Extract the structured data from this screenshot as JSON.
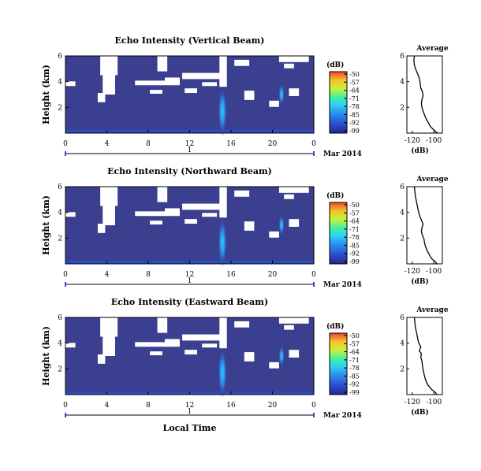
{
  "chart_data": [
    {
      "type": "heatmap",
      "title": "Echo Intensity (Vertical Beam)",
      "ylabel": "Height (km)",
      "y_ticks": [
        "6",
        "4",
        "2"
      ],
      "ylim": [
        0,
        6
      ],
      "x_ticks": [
        "0",
        "4",
        "8",
        "12",
        "16",
        "20",
        "0"
      ],
      "xlim": [
        0,
        24
      ],
      "day_label": "1",
      "month_label": "Mar 2014",
      "colorbar": {
        "unit": "(dB)",
        "ticks": [
          "-50",
          "-57",
          "-64",
          "-71",
          "-78",
          "-85",
          "-92",
          "-99"
        ]
      },
      "profile": {
        "title": "Average",
        "xlabel": "(dB)",
        "x_ticks": [
          "-120",
          "-100"
        ],
        "y_ticks": [
          "6",
          "4",
          "2"
        ],
        "xlim": [
          -125,
          -92
        ],
        "ylim": [
          0,
          6
        ],
        "points": [
          [
            -118,
            6.0
          ],
          [
            -118.5,
            5.7
          ],
          [
            -118,
            5.3
          ],
          [
            -117,
            5.0
          ],
          [
            -115.5,
            4.7
          ],
          [
            -114,
            4.4
          ],
          [
            -113,
            4.1
          ],
          [
            -112.5,
            3.8
          ],
          [
            -112,
            3.5
          ],
          [
            -110.5,
            3.2
          ],
          [
            -110,
            2.9
          ],
          [
            -111,
            2.6
          ],
          [
            -111.5,
            2.3
          ],
          [
            -111,
            2.0
          ],
          [
            -110,
            1.7
          ],
          [
            -108.5,
            1.4
          ],
          [
            -107,
            1.1
          ],
          [
            -105,
            0.8
          ],
          [
            -103,
            0.5
          ],
          [
            -100,
            0.25
          ],
          [
            -98,
            0.1
          ],
          [
            -96,
            0.0
          ]
        ]
      }
    },
    {
      "type": "heatmap",
      "title": "Echo Intensity (Northward Beam)",
      "ylabel": "Height (km)",
      "y_ticks": [
        "6",
        "4",
        "2"
      ],
      "ylim": [
        0,
        6
      ],
      "x_ticks": [
        "0",
        "4",
        "8",
        "12",
        "16",
        "20",
        "0"
      ],
      "xlim": [
        0,
        24
      ],
      "day_label": "1",
      "month_label": "Mar 2014",
      "colorbar": {
        "unit": "(dB)",
        "ticks": [
          "-50",
          "-57",
          "-64",
          "-71",
          "-78",
          "-85",
          "-92",
          "-99"
        ]
      },
      "profile": {
        "title": "Average",
        "xlabel": "(dB)",
        "x_ticks": [
          "-120",
          "-100"
        ],
        "y_ticks": [
          "6",
          "4",
          "2"
        ],
        "xlim": [
          -125,
          -92
        ],
        "ylim": [
          0,
          6
        ],
        "points": [
          [
            -118,
            6.0
          ],
          [
            -117.5,
            5.6
          ],
          [
            -117,
            5.2
          ],
          [
            -116,
            4.8
          ],
          [
            -115,
            4.4
          ],
          [
            -114,
            4.0
          ],
          [
            -113,
            3.7
          ],
          [
            -111.5,
            3.4
          ],
          [
            -110,
            3.1
          ],
          [
            -111,
            2.8
          ],
          [
            -111.5,
            2.5
          ],
          [
            -110.5,
            2.2
          ],
          [
            -109,
            1.9
          ],
          [
            -108.5,
            1.6
          ],
          [
            -107.5,
            1.3
          ],
          [
            -106,
            1.0
          ],
          [
            -104,
            0.7
          ],
          [
            -102,
            0.4
          ],
          [
            -99,
            0.2
          ],
          [
            -97,
            0.0
          ]
        ]
      }
    },
    {
      "type": "heatmap",
      "title": "Echo Intensity (Eastward Beam)",
      "ylabel": "Height (km)",
      "y_ticks": [
        "6",
        "4",
        "2"
      ],
      "ylim": [
        0,
        6
      ],
      "x_ticks": [
        "0",
        "4",
        "8",
        "12",
        "16",
        "20",
        "0"
      ],
      "xlim": [
        0,
        24
      ],
      "day_label": "1",
      "month_label": "Mar 2014",
      "xlabel": "Local Time",
      "colorbar": {
        "unit": "(dB)",
        "ticks": [
          "-50",
          "-57",
          "-64",
          "-71",
          "-78",
          "-85",
          "-92",
          "-99"
        ]
      },
      "profile": {
        "title": "Average",
        "xlabel": "(dB)",
        "x_ticks": [
          "-120",
          "-100"
        ],
        "y_ticks": [
          "6",
          "4",
          "2"
        ],
        "xlim": [
          -125,
          -92
        ],
        "ylim": [
          0,
          6
        ],
        "points": [
          [
            -118,
            6.0
          ],
          [
            -117.5,
            5.6
          ],
          [
            -117,
            5.2
          ],
          [
            -116,
            4.8
          ],
          [
            -115,
            4.4
          ],
          [
            -114,
            4.0
          ],
          [
            -112,
            3.7
          ],
          [
            -113.5,
            3.4
          ],
          [
            -111.5,
            3.2
          ],
          [
            -112,
            2.9
          ],
          [
            -111,
            2.6
          ],
          [
            -110.5,
            2.2
          ],
          [
            -109.5,
            1.8
          ],
          [
            -108.5,
            1.4
          ],
          [
            -107,
            1.0
          ],
          [
            -105,
            0.7
          ],
          [
            -102,
            0.4
          ],
          [
            -99,
            0.2
          ],
          [
            -97,
            0.0
          ]
        ]
      }
    }
  ],
  "colors": {
    "background_field": "#3a3f8f",
    "colormap": [
      "#27268a",
      "#2a4fd0",
      "#2c8ef0",
      "#2fd2f2",
      "#3ff0a6",
      "#c6f23a",
      "#f6c42a",
      "#f0442a"
    ]
  }
}
